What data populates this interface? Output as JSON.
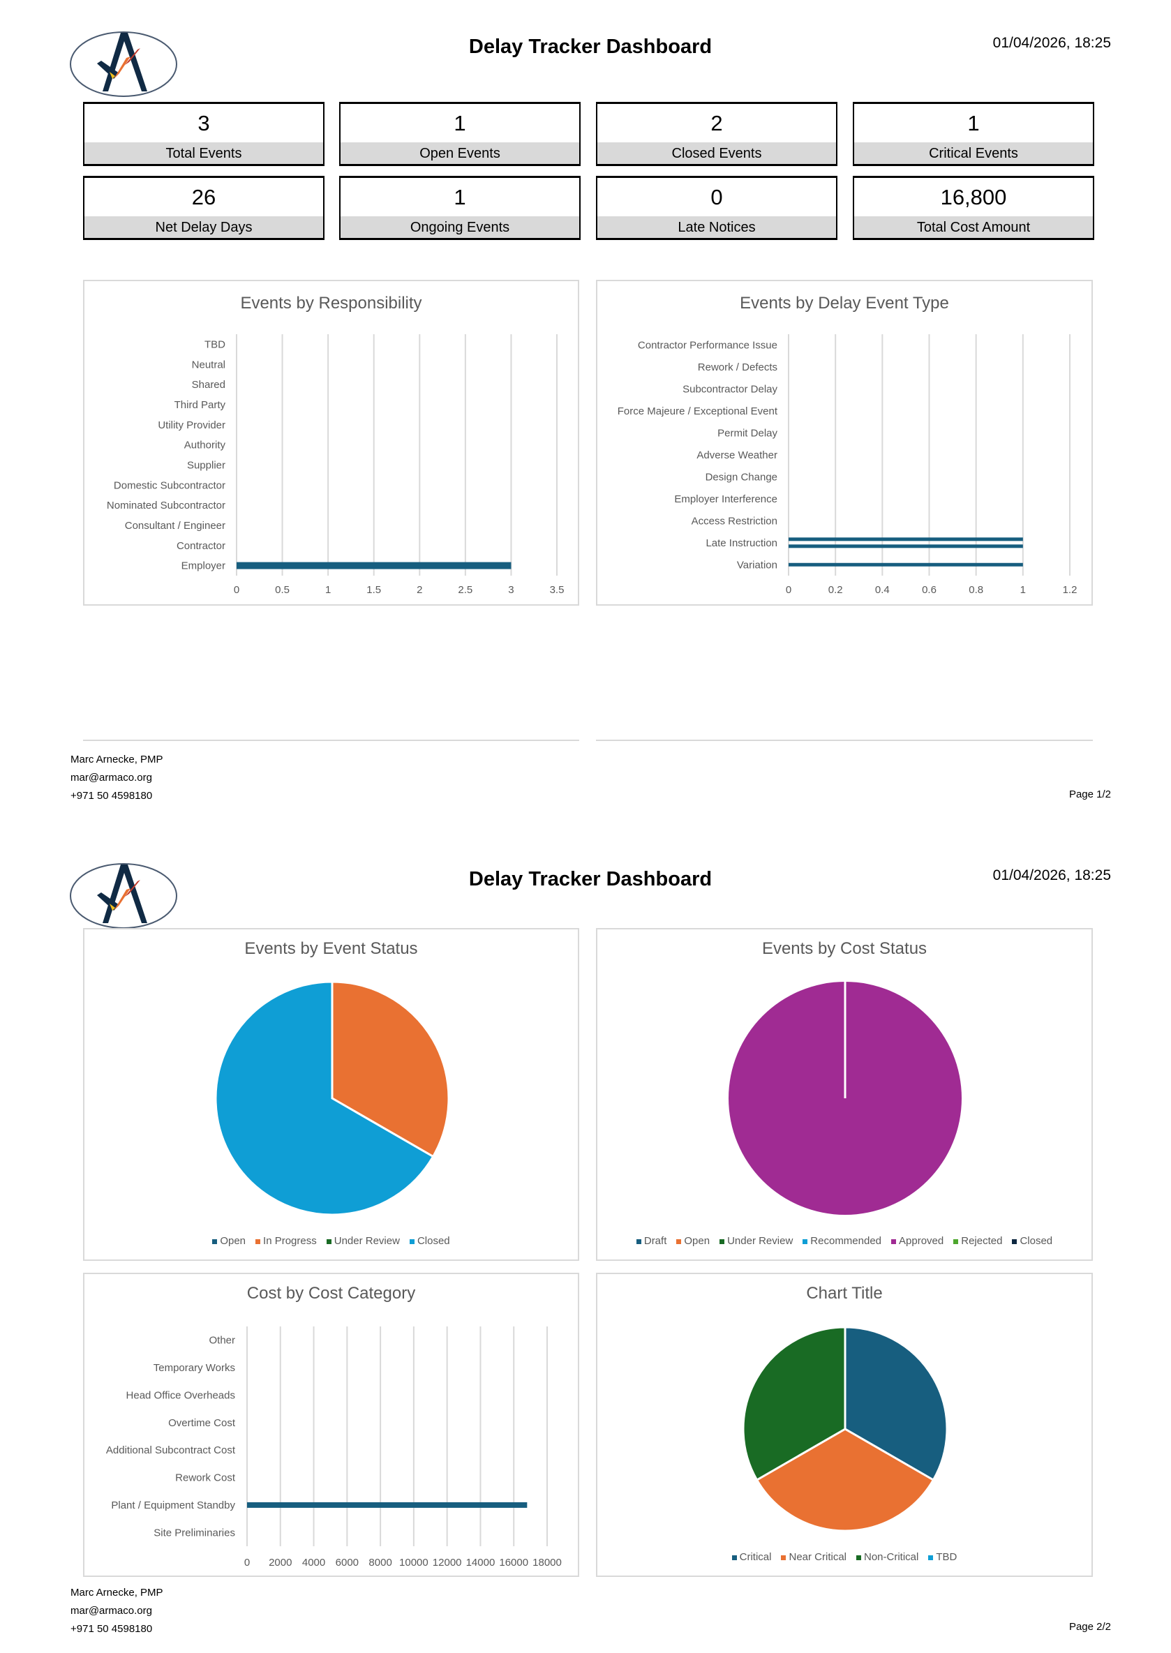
{
  "header": {
    "title": "Delay Tracker Dashboard",
    "datetime": "01/04/2026, 18:25",
    "logo_icon": "armaco-logo-icon"
  },
  "kpis": [
    {
      "value": "3",
      "label": "Total Events"
    },
    {
      "value": "1",
      "label": "Open Events"
    },
    {
      "value": "2",
      "label": "Closed Events"
    },
    {
      "value": "1",
      "label": "Critical Events"
    },
    {
      "value": "26",
      "label": "Net Delay Days"
    },
    {
      "value": "1",
      "label": "Ongoing Events"
    },
    {
      "value": "0",
      "label": "Late Notices"
    },
    {
      "value": "16,800",
      "label": "Total Cost Amount"
    }
  ],
  "footer": {
    "name": "Marc Arnecke, PMP",
    "email": "mar@armaco.org",
    "phone": "+971 50 4598180",
    "page1": "Page 1/2",
    "page2": "Page 2/2"
  },
  "colors": {
    "bar": "#175e7f",
    "kpi_label_bg": "#d9d9d9"
  },
  "chart_data": [
    {
      "type": "bar",
      "orientation": "horizontal",
      "title": "Events by Responsibility",
      "categories": [
        "Employer",
        "Contractor",
        "Consultant / Engineer",
        "Nominated Subcontractor",
        "Domestic Subcontractor",
        "Supplier",
        "Authority",
        "Utility Provider",
        "Third Party",
        "Shared",
        "Neutral",
        "TBD"
      ],
      "values": [
        [
          3
        ],
        [],
        [],
        [],
        [],
        [],
        [],
        [],
        [],
        [],
        [],
        []
      ],
      "xlim": [
        0,
        3.5
      ],
      "xticks": [
        "0",
        "0.5",
        "1",
        "1.5",
        "2",
        "2.5",
        "3",
        "3.5"
      ],
      "grid": true
    },
    {
      "type": "bar",
      "orientation": "horizontal",
      "title": "Events by Delay Event Type",
      "categories": [
        "Variation",
        "Late Instruction",
        "Access Restriction",
        "Employer Interference",
        "Design Change",
        "Adverse Weather",
        "Permit Delay",
        "Force Majeure / Exceptional Event",
        "Subcontractor Delay",
        "Rework / Defects",
        "Contractor Performance Issue"
      ],
      "values": [
        [
          1
        ],
        [
          1,
          1
        ],
        [],
        [],
        [],
        [],
        [],
        [],
        [],
        [],
        []
      ],
      "xlim": [
        0,
        1.2
      ],
      "xticks": [
        "0",
        "0.2",
        "0.4",
        "0.6",
        "0.8",
        "1",
        "1.2"
      ],
      "grid": true
    },
    {
      "type": "pie",
      "title": "Events by Event Status",
      "labels": [
        "Open",
        "In Progress",
        "Under Review",
        "Closed"
      ],
      "values": [
        0,
        1,
        0,
        2
      ],
      "colors": [
        "#175e7f",
        "#e97132",
        "#196b24",
        "#0f9ed5"
      ],
      "legend": "bottom"
    },
    {
      "type": "pie",
      "title": "Events by Cost Status",
      "labels": [
        "Draft",
        "Open",
        "Under Review",
        "Recommended",
        "Approved",
        "Rejected",
        "Closed"
      ],
      "values": [
        0,
        0,
        0,
        0,
        3,
        0,
        0
      ],
      "colors": [
        "#175e7f",
        "#e97132",
        "#196b24",
        "#0f9ed5",
        "#a02b93",
        "#4ea72e",
        "#0e2841"
      ],
      "legend": "bottom"
    },
    {
      "type": "bar",
      "orientation": "horizontal",
      "title": "Cost by Cost Category",
      "categories": [
        "Site Preliminaries",
        "Plant / Equipment Standby",
        "Rework Cost",
        "Additional Subcontract Cost",
        "Overtime Cost",
        "Head Office Overheads",
        "Temporary Works",
        "Other"
      ],
      "values": [
        [],
        [
          16800
        ],
        [],
        [],
        [],
        [],
        [],
        []
      ],
      "xlim": [
        0,
        18000
      ],
      "xticks": [
        "0",
        "2000",
        "4000",
        "6000",
        "8000",
        "10000",
        "12000",
        "14000",
        "16000",
        "18000"
      ],
      "grid": true
    },
    {
      "type": "pie",
      "title": "Chart Title",
      "labels": [
        "Critical",
        "Near Critical",
        "Non-Critical",
        "TBD"
      ],
      "values": [
        1,
        1,
        1,
        0
      ],
      "colors": [
        "#175e7f",
        "#e97132",
        "#196b24",
        "#0f9ed5"
      ],
      "legend": "bottom"
    }
  ]
}
